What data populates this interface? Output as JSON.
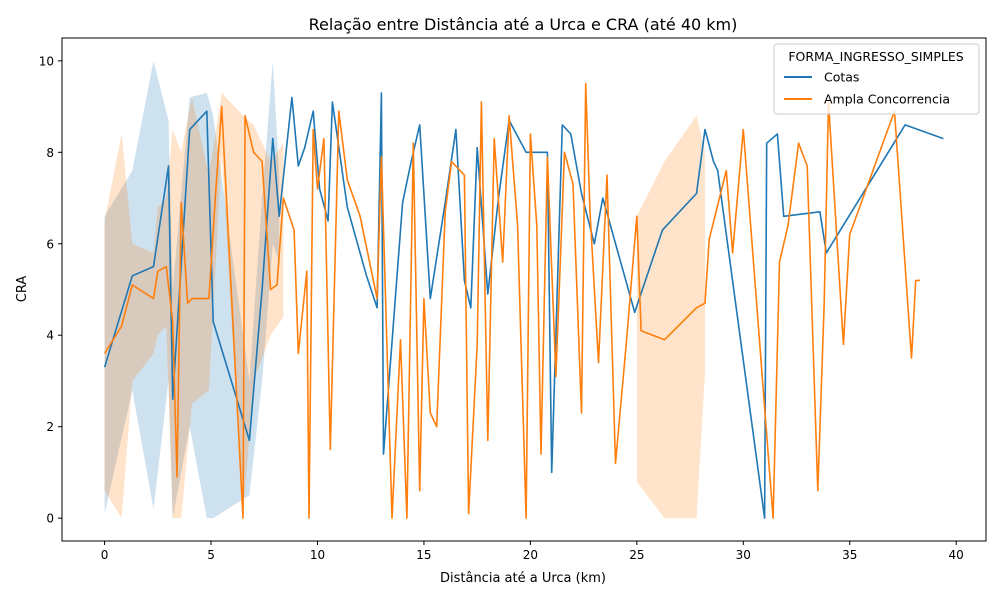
{
  "chart_data": {
    "type": "line",
    "title": "Relação entre Distância até a Urca e CRA (até 40 km)",
    "xlabel": "Distância até a Urca (km)",
    "ylabel": "CRA",
    "xlim": [
      -2.0,
      41.4
    ],
    "ylim": [
      -0.5,
      10.5
    ],
    "xticks": [
      0,
      5,
      10,
      15,
      20,
      25,
      30,
      35,
      40
    ],
    "yticks": [
      0,
      2,
      4,
      6,
      8,
      10
    ],
    "xtick_labels": [
      "0",
      "5",
      "10",
      "15",
      "20",
      "25",
      "30",
      "35",
      "40"
    ],
    "ytick_labels": [
      "0",
      "2",
      "4",
      "6",
      "8",
      "10"
    ],
    "grid": false,
    "legend": {
      "title": "FORMA_INGRESSO_SIMPLES",
      "placement": "top-right"
    },
    "series": [
      {
        "name": "Cotas",
        "color": "#1f77b4",
        "x": [
          0.0,
          1.3,
          2.3,
          3.0,
          3.2,
          4.0,
          4.8,
          5.1,
          6.8,
          7.4,
          7.9,
          8.2,
          8.8,
          9.1,
          9.4,
          9.8,
          10.1,
          10.5,
          10.7,
          11.4,
          12.3,
          12.8,
          13.0,
          13.1,
          14.0,
          14.4,
          14.8,
          15.3,
          16.0,
          16.5,
          16.9,
          17.2,
          17.5,
          18.0,
          18.5,
          19.0,
          19.8,
          20.8,
          21.0,
          21.5,
          21.9,
          22.4,
          23.0,
          23.4,
          24.9,
          26.2,
          27.8,
          28.2,
          28.6,
          28.8,
          31.0,
          31.1,
          31.6,
          31.9,
          33.6,
          33.9,
          37.6,
          39.4
        ],
        "y": [
          3.3,
          5.3,
          5.5,
          7.7,
          2.6,
          8.5,
          8.9,
          4.3,
          1.7,
          5.0,
          8.3,
          6.6,
          9.2,
          7.7,
          8.1,
          8.9,
          7.2,
          6.5,
          9.1,
          6.8,
          5.3,
          4.6,
          9.3,
          1.4,
          6.9,
          7.8,
          8.6,
          4.8,
          6.9,
          8.5,
          5.2,
          4.6,
          8.1,
          4.9,
          7.0,
          8.7,
          8.0,
          8.0,
          1.0,
          8.6,
          8.4,
          7.1,
          6.0,
          7.0,
          4.5,
          6.3,
          7.1,
          8.5,
          7.8,
          7.6,
          0.0,
          8.2,
          8.4,
          6.6,
          6.7,
          5.8,
          8.6,
          8.3
        ]
      },
      {
        "name": "Ampla Concorrencia",
        "color": "#ff7f0e",
        "x": [
          0.0,
          0.8,
          1.3,
          2.3,
          2.5,
          2.9,
          3.2,
          3.4,
          3.6,
          3.9,
          4.1,
          4.3,
          4.9,
          5.2,
          5.5,
          6.5,
          6.6,
          7.0,
          7.4,
          7.8,
          8.1,
          8.4,
          8.9,
          9.1,
          9.5,
          9.6,
          9.8,
          10.0,
          10.3,
          10.6,
          11.0,
          11.4,
          12.0,
          12.8,
          13.0,
          13.5,
          13.9,
          14.2,
          14.5,
          14.8,
          15.0,
          15.3,
          15.6,
          16.0,
          16.3,
          16.9,
          17.1,
          17.5,
          17.7,
          18.0,
          18.3,
          18.7,
          19.0,
          19.4,
          19.8,
          20.0,
          20.3,
          20.5,
          20.8,
          21.2,
          21.6,
          22.0,
          22.4,
          22.6,
          22.8,
          23.2,
          23.6,
          24.0,
          24.5,
          25.0,
          25.2,
          26.3,
          27.8,
          28.2,
          28.4,
          29.2,
          29.5,
          30.0,
          31.4,
          31.7,
          32.1,
          32.6,
          33.0,
          33.5,
          33.8,
          34.0,
          34.7,
          35.0,
          37.1,
          37.9,
          38.1,
          38.3
        ],
        "y": [
          3.6,
          4.2,
          5.1,
          4.8,
          5.4,
          5.5,
          4.3,
          0.9,
          6.9,
          4.7,
          4.8,
          4.8,
          4.8,
          7.0,
          9.0,
          0.0,
          8.8,
          8.0,
          7.8,
          5.0,
          5.1,
          7.0,
          6.3,
          3.6,
          5.4,
          0.0,
          8.5,
          7.2,
          8.3,
          1.5,
          8.9,
          7.4,
          6.6,
          4.8,
          7.9,
          0.0,
          3.9,
          0.0,
          8.2,
          0.6,
          4.8,
          2.3,
          2.0,
          6.7,
          7.8,
          7.5,
          0.1,
          3.8,
          9.1,
          1.7,
          8.3,
          5.6,
          8.8,
          6.4,
          0.0,
          8.4,
          6.4,
          1.4,
          7.9,
          3.1,
          8.0,
          7.3,
          2.3,
          9.5,
          6.7,
          3.4,
          7.5,
          1.2,
          3.8,
          6.6,
          4.1,
          3.9,
          4.6,
          4.7,
          6.1,
          7.6,
          5.8,
          8.5,
          0.0,
          5.6,
          6.4,
          8.2,
          7.7,
          0.6,
          4.7,
          9.1,
          3.8,
          6.2,
          8.9,
          3.5,
          5.2,
          5.2
        ]
      }
    ],
    "bands": [
      {
        "series": "Cotas",
        "color": "#1f77b4",
        "x": [
          0.0,
          1.3,
          2.3,
          3.0,
          3.2,
          4.0,
          4.8,
          5.1,
          6.8,
          7.4,
          7.9,
          8.2
        ],
        "lower": [
          0.1,
          2.8,
          0.2,
          3.0,
          0.0,
          2.0,
          0.0,
          0.0,
          0.5,
          3.0,
          6.0,
          5.6
        ],
        "upper": [
          6.6,
          7.6,
          10.0,
          8.7,
          5.0,
          9.2,
          9.3,
          8.8,
          3.0,
          7.0,
          10.0,
          7.5
        ]
      },
      {
        "series": "Ampla Concorrencia",
        "color": "#ff7f0e",
        "x": [
          0.0,
          0.8,
          1.3,
          2.3,
          2.5,
          2.9,
          3.2,
          3.6,
          4.1,
          4.9,
          5.5,
          6.5,
          7.0,
          7.8,
          8.4
        ],
        "lower": [
          0.6,
          0.0,
          3.0,
          3.6,
          4.0,
          4.2,
          0.0,
          0.0,
          2.5,
          2.8,
          8.0,
          0.0,
          3.0,
          4.0,
          4.4
        ],
        "upper": [
          6.5,
          8.4,
          6.0,
          5.8,
          6.8,
          7.0,
          8.5,
          8.0,
          9.2,
          7.5,
          9.3,
          8.8,
          8.6,
          7.8,
          8.2
        ]
      },
      {
        "series": "Ampla Concorrencia",
        "color": "#ff7f0e",
        "x": [
          25.0,
          26.3,
          27.8,
          28.2
        ],
        "lower": [
          0.8,
          0.0,
          0.0,
          3.2
        ],
        "upper": [
          6.6,
          7.8,
          8.8,
          8.0
        ]
      }
    ]
  }
}
